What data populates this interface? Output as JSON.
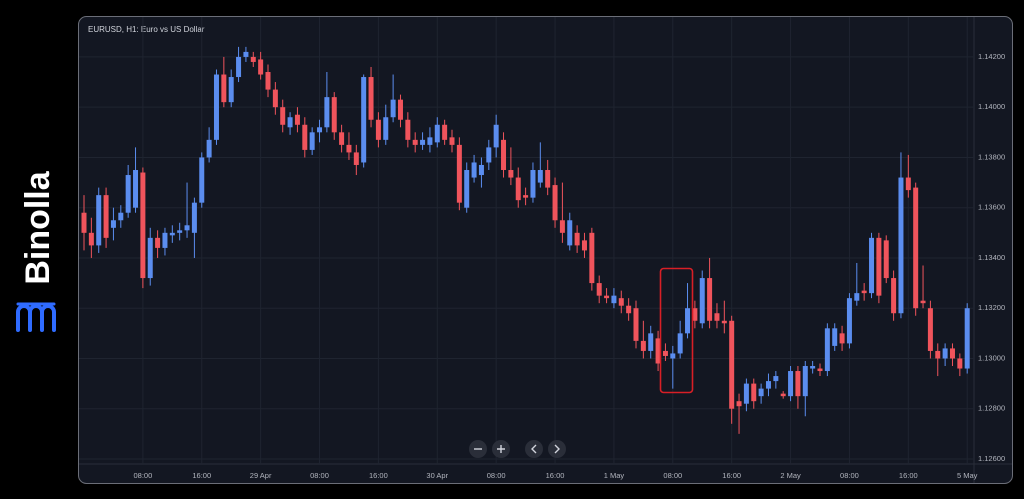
{
  "brand": "Binolla",
  "chart_data": {
    "type": "candlestick",
    "title": "EURUSD, H1: Euro vs US Dollar",
    "up_color": "#5b8def",
    "down_color": "#f0545c",
    "grid": true,
    "ylim": [
      1.12588,
      1.14339
    ],
    "yticks": [
      {
        "value": 1.126,
        "label": "1.12600"
      },
      {
        "value": 1.128,
        "label": "1.12800"
      },
      {
        "value": 1.13,
        "label": "1.13000"
      },
      {
        "value": 1.132,
        "label": "1.13200"
      },
      {
        "value": 1.134,
        "label": "1.13400"
      },
      {
        "value": 1.136,
        "label": "1.13600"
      },
      {
        "value": 1.138,
        "label": "1.13800"
      },
      {
        "value": 1.14,
        "label": "1.14000"
      },
      {
        "value": 1.142,
        "label": "1.14200"
      }
    ],
    "categories": [
      null,
      null,
      null,
      null,
      null,
      null,
      null,
      null,
      "08:00",
      null,
      null,
      null,
      null,
      null,
      null,
      null,
      "16:00",
      null,
      null,
      null,
      null,
      null,
      null,
      null,
      "29 Apr",
      null,
      null,
      null,
      null,
      null,
      null,
      null,
      "08:00",
      null,
      null,
      null,
      null,
      null,
      null,
      null,
      "16:00",
      null,
      null,
      null,
      null,
      null,
      null,
      null,
      "30 Apr",
      null,
      null,
      null,
      null,
      null,
      null,
      null,
      "08:00",
      null,
      null,
      null,
      null,
      null,
      null,
      null,
      "16:00",
      null,
      null,
      null,
      null,
      null,
      null,
      null,
      "1 May",
      null,
      null,
      null,
      null,
      null,
      null,
      null,
      "08:00",
      null,
      null,
      null,
      null,
      null,
      null,
      null,
      "16:00",
      null,
      null,
      null,
      null,
      null,
      null,
      null,
      "2 May",
      null,
      null,
      null,
      null,
      null,
      null,
      null,
      "08:00",
      null,
      null,
      null,
      null,
      null,
      null,
      null,
      "16:00",
      null,
      null,
      null,
      null,
      null,
      null,
      null,
      "5 May"
    ],
    "ohlc": [
      [
        1.1358,
        1.1365,
        1.1343,
        1.135
      ],
      [
        1.135,
        1.1356,
        1.134,
        1.1345
      ],
      [
        1.1345,
        1.1368,
        1.1342,
        1.1365
      ],
      [
        1.1365,
        1.1368,
        1.1344,
        1.1348
      ],
      [
        1.1352,
        1.136,
        1.1347,
        1.1355
      ],
      [
        1.1355,
        1.1361,
        1.1352,
        1.1358
      ],
      [
        1.1358,
        1.1377,
        1.1356,
        1.1373
      ],
      [
        1.136,
        1.1384,
        1.1358,
        1.1375
      ],
      [
        1.1374,
        1.1376,
        1.1328,
        1.1332
      ],
      [
        1.1332,
        1.1352,
        1.1329,
        1.1348
      ],
      [
        1.1348,
        1.1351,
        1.134,
        1.1344
      ],
      [
        1.1344,
        1.1352,
        1.1341,
        1.135
      ],
      [
        1.1349,
        1.1353,
        1.1346,
        1.135
      ],
      [
        1.135,
        1.1354,
        1.1347,
        1.1351
      ],
      [
        1.1351,
        1.137,
        1.1348,
        1.1353
      ],
      [
        1.135,
        1.1364,
        1.134,
        1.1362
      ],
      [
        1.1362,
        1.1382,
        1.136,
        1.138
      ],
      [
        1.138,
        1.1392,
        1.1378,
        1.1387
      ],
      [
        1.1387,
        1.1415,
        1.1385,
        1.1413
      ],
      [
        1.1413,
        1.142,
        1.14,
        1.1402
      ],
      [
        1.1402,
        1.1415,
        1.14,
        1.1412
      ],
      [
        1.1412,
        1.1424,
        1.141,
        1.142
      ],
      [
        1.142,
        1.1424,
        1.1418,
        1.1422
      ],
      [
        1.142,
        1.1422,
        1.1416,
        1.1418
      ],
      [
        1.1419,
        1.1422,
        1.1411,
        1.1413
      ],
      [
        1.1414,
        1.1417,
        1.1404,
        1.1407
      ],
      [
        1.1407,
        1.141,
        1.1397,
        1.14
      ],
      [
        1.14,
        1.1403,
        1.139,
        1.1393
      ],
      [
        1.1392,
        1.1398,
        1.1389,
        1.1396
      ],
      [
        1.1397,
        1.14,
        1.139,
        1.1393
      ],
      [
        1.1393,
        1.1396,
        1.138,
        1.1383
      ],
      [
        1.1383,
        1.1392,
        1.1381,
        1.139
      ],
      [
        1.139,
        1.1395,
        1.1386,
        1.1392
      ],
      [
        1.1392,
        1.1414,
        1.139,
        1.1404
      ],
      [
        1.1404,
        1.1406,
        1.1387,
        1.139
      ],
      [
        1.139,
        1.1393,
        1.1382,
        1.1385
      ],
      [
        1.1385,
        1.139,
        1.1379,
        1.1382
      ],
      [
        1.1382,
        1.1385,
        1.1373,
        1.1377
      ],
      [
        1.1378,
        1.1413,
        1.1376,
        1.1412
      ],
      [
        1.1412,
        1.1416,
        1.1392,
        1.1395
      ],
      [
        1.1395,
        1.1398,
        1.1384,
        1.1387
      ],
      [
        1.1387,
        1.1401,
        1.1385,
        1.1396
      ],
      [
        1.1396,
        1.1413,
        1.1394,
        1.1403
      ],
      [
        1.1403,
        1.1405,
        1.1392,
        1.1395
      ],
      [
        1.1395,
        1.1398,
        1.1384,
        1.1387
      ],
      [
        1.1387,
        1.139,
        1.1382,
        1.1385
      ],
      [
        1.1385,
        1.139,
        1.1383,
        1.1387
      ],
      [
        1.1385,
        1.1392,
        1.1382,
        1.1388
      ],
      [
        1.1386,
        1.1396,
        1.1384,
        1.1393
      ],
      [
        1.1393,
        1.1395,
        1.1385,
        1.1387
      ],
      [
        1.1388,
        1.1391,
        1.1382,
        1.1385
      ],
      [
        1.1385,
        1.1388,
        1.1359,
        1.1362
      ],
      [
        1.136,
        1.1378,
        1.1358,
        1.1375
      ],
      [
        1.1372,
        1.1381,
        1.137,
        1.1378
      ],
      [
        1.1373,
        1.138,
        1.1368,
        1.1377
      ],
      [
        1.1378,
        1.1387,
        1.1375,
        1.1384
      ],
      [
        1.1384,
        1.1397,
        1.138,
        1.1393
      ],
      [
        1.1387,
        1.139,
        1.1372,
        1.1375
      ],
      [
        1.1375,
        1.1384,
        1.1369,
        1.1372
      ],
      [
        1.1372,
        1.1376,
        1.136,
        1.1363
      ],
      [
        1.1365,
        1.1368,
        1.1361,
        1.1364
      ],
      [
        1.1364,
        1.1378,
        1.1362,
        1.1375
      ],
      [
        1.137,
        1.1386,
        1.1368,
        1.1375
      ],
      [
        1.1375,
        1.1379,
        1.1365,
        1.1368
      ],
      [
        1.1369,
        1.1372,
        1.1352,
        1.1355
      ],
      [
        1.1355,
        1.137,
        1.1346,
        1.135
      ],
      [
        1.1345,
        1.1358,
        1.1343,
        1.1355
      ],
      [
        1.135,
        1.1353,
        1.1342,
        1.1345
      ],
      [
        1.1347,
        1.135,
        1.134,
        1.1343
      ],
      [
        1.135,
        1.1352,
        1.1327,
        1.133
      ],
      [
        1.133,
        1.1333,
        1.1322,
        1.1325
      ],
      [
        1.1325,
        1.1328,
        1.1322,
        1.1324
      ],
      [
        1.1322,
        1.1328,
        1.132,
        1.1325
      ],
      [
        1.1324,
        1.1327,
        1.1318,
        1.1321
      ],
      [
        1.1321,
        1.1324,
        1.1315,
        1.1318
      ],
      [
        1.132,
        1.1323,
        1.1304,
        1.1307
      ],
      [
        1.1307,
        1.1315,
        1.13,
        1.1303
      ],
      [
        1.1303,
        1.1313,
        1.13,
        1.131
      ],
      [
        1.1308,
        1.1311,
        1.1295,
        1.1298
      ],
      [
        1.1303,
        1.1306,
        1.1299,
        1.1301
      ],
      [
        1.13,
        1.1305,
        1.1288,
        1.1302
      ],
      [
        1.1302,
        1.1315,
        1.13,
        1.131
      ],
      [
        1.131,
        1.133,
        1.1308,
        1.132
      ],
      [
        1.132,
        1.1323,
        1.1312,
        1.1315
      ],
      [
        1.1314,
        1.1335,
        1.1312,
        1.1332
      ],
      [
        1.1332,
        1.134,
        1.1312,
        1.1315
      ],
      [
        1.1318,
        1.1322,
        1.1312,
        1.1315
      ],
      [
        1.1315,
        1.1323,
        1.131,
        1.1314
      ],
      [
        1.1315,
        1.1317,
        1.1274,
        1.128
      ],
      [
        1.1283,
        1.1286,
        1.127,
        1.1281
      ],
      [
        1.1282,
        1.1292,
        1.1279,
        1.129
      ],
      [
        1.129,
        1.1292,
        1.128,
        1.1283
      ],
      [
        1.1285,
        1.129,
        1.1282,
        1.1288
      ],
      [
        1.1288,
        1.1294,
        1.1285,
        1.1291
      ],
      [
        1.1291,
        1.1295,
        1.1288,
        1.1293
      ],
      [
        1.1286,
        1.1287,
        1.1284,
        1.1285
      ],
      [
        1.1285,
        1.1297,
        1.1283,
        1.1295
      ],
      [
        1.1295,
        1.1297,
        1.128,
        1.1285
      ],
      [
        1.1285,
        1.1299,
        1.1277,
        1.1297
      ],
      [
        1.1296,
        1.1299,
        1.1294,
        1.1297
      ],
      [
        1.1296,
        1.1298,
        1.1293,
        1.1295
      ],
      [
        1.1295,
        1.1314,
        1.1293,
        1.1312
      ],
      [
        1.1305,
        1.1314,
        1.1303,
        1.1312
      ],
      [
        1.131,
        1.1313,
        1.1303,
        1.1306
      ],
      [
        1.1306,
        1.1326,
        1.1304,
        1.1324
      ],
      [
        1.1323,
        1.1338,
        1.1321,
        1.1326
      ],
      [
        1.1327,
        1.133,
        1.1323,
        1.1326
      ],
      [
        1.1326,
        1.135,
        1.1324,
        1.1348
      ],
      [
        1.1348,
        1.135,
        1.1322,
        1.1325
      ],
      [
        1.1347,
        1.1349,
        1.133,
        1.1332
      ],
      [
        1.1332,
        1.1335,
        1.1315,
        1.1318
      ],
      [
        1.1318,
        1.1382,
        1.1316,
        1.1372
      ],
      [
        1.1372,
        1.1381,
        1.1364,
        1.1367
      ],
      [
        1.1368,
        1.137,
        1.1317,
        1.132
      ],
      [
        1.1323,
        1.1337,
        1.132,
        1.1322
      ],
      [
        1.132,
        1.1323,
        1.13,
        1.1303
      ],
      [
        1.1303,
        1.1306,
        1.1293,
        1.13
      ],
      [
        1.13,
        1.1306,
        1.1297,
        1.1304
      ],
      [
        1.1304,
        1.1306,
        1.1297,
        1.13
      ],
      [
        1.13,
        1.1302,
        1.1293,
        1.1296
      ],
      [
        1.1296,
        1.1322,
        1.1294,
        1.132
      ]
    ]
  }
}
